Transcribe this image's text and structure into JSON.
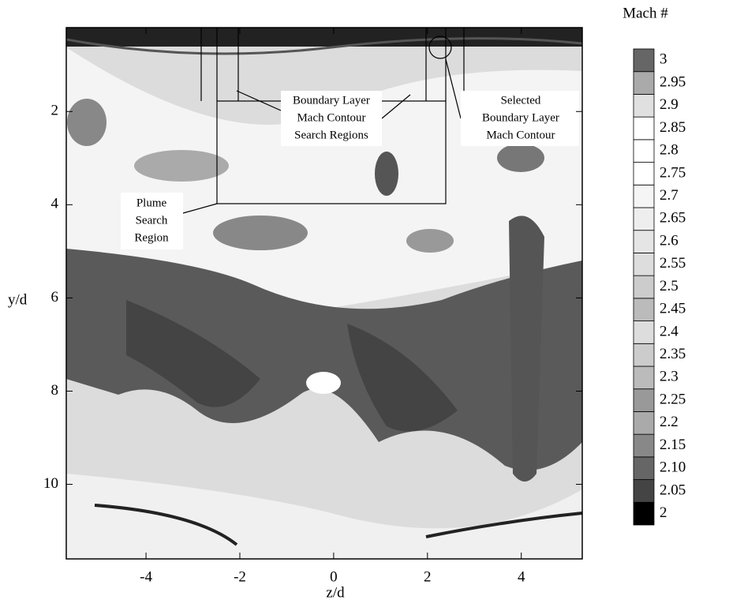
{
  "chart_data": {
    "type": "contour",
    "xlabel": "z/d",
    "ylabel": "y/d",
    "xlim": [
      -5.7,
      5.3
    ],
    "xticks": [
      -4,
      -2,
      0,
      2,
      4
    ],
    "ylim": [
      0.2,
      11.6
    ],
    "yticks": [
      2,
      4,
      6,
      8,
      10
    ],
    "y_inverted": true,
    "colorbar": {
      "label": "Mach #",
      "lim": [
        1.975,
        3.025
      ],
      "ticks": [
        2,
        2.05,
        {
          "value": 2.1,
          "label": "2.10"
        },
        2.15,
        2.2,
        2.25,
        2.3,
        2.35,
        2.4,
        2.45,
        2.5,
        2.55,
        2.6,
        2.65,
        2.7,
        2.75,
        2.8,
        2.85,
        2.9,
        2.95,
        3
      ],
      "colors": [
        "#000000",
        "#444444",
        "#666666",
        "#888888",
        "#aaaaaa",
        "#999999",
        "#bbbbbb",
        "#cccccc",
        "#dddddd",
        "#bbbbbb",
        "#cccccc",
        "#dddddd",
        "#e5e5e5",
        "#eeeeee",
        "#f5f5f5",
        "#ffffff",
        "#ffffff",
        "#ffffff",
        "#e0e0e0",
        "#aaaaaa",
        "#666666"
      ]
    },
    "annotations": [
      {
        "lines": [
          "Boundary Layer",
          "Mach Contour",
          "Search Regions"
        ]
      },
      {
        "lines": [
          "Selected",
          "Boundary Layer",
          "Mach Contour"
        ]
      },
      {
        "lines": [
          "Plume",
          "Search",
          "Region"
        ]
      }
    ]
  }
}
